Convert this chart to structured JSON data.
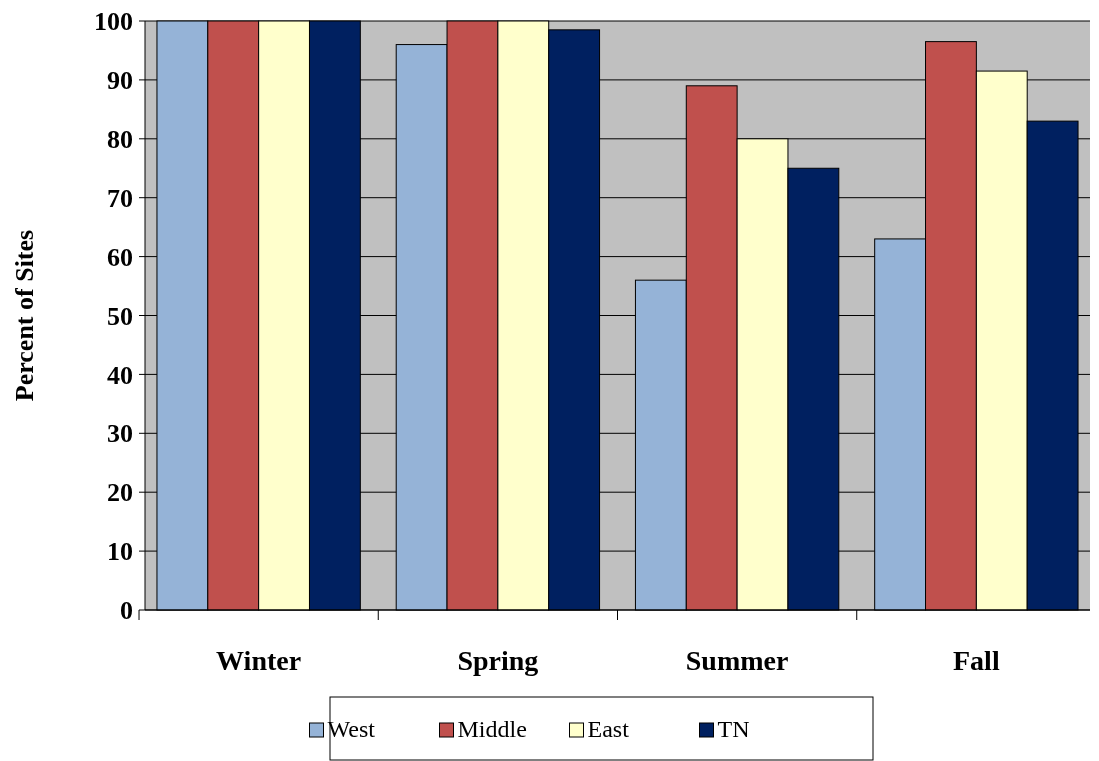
{
  "chart_data": {
    "type": "bar",
    "ylabel": "Percent of Sites",
    "categories": [
      "Winter",
      "Spring",
      "Summer",
      "Fall"
    ],
    "series": [
      {
        "name": "West",
        "color": "#95b3d7",
        "values": [
          100,
          96,
          56,
          63
        ]
      },
      {
        "name": "Middle",
        "color": "#c0504d",
        "values": [
          100,
          100,
          89,
          96.5
        ]
      },
      {
        "name": "East",
        "color": "#ffffcc",
        "values": [
          100,
          100,
          80,
          91.5
        ]
      },
      {
        "name": "TN",
        "color": "#002060",
        "values": [
          100,
          98.5,
          75,
          83
        ]
      }
    ],
    "ylim": [
      0,
      100
    ],
    "yticks": [
      0,
      10,
      20,
      30,
      40,
      50,
      60,
      70,
      80,
      90,
      100
    ],
    "grid": "y",
    "legend": "bottom"
  }
}
